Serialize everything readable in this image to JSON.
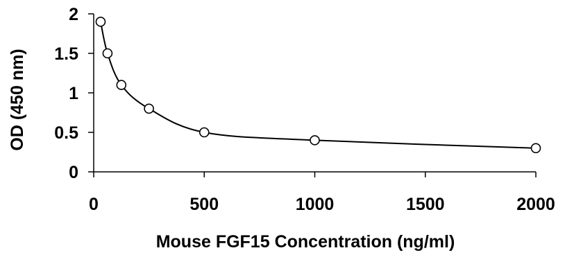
{
  "chart_data": {
    "type": "scatter",
    "xlabel": "Mouse FGF15  Concentration (ng/ml)",
    "ylabel": "OD (450 nm)",
    "xlim": [
      0,
      2000
    ],
    "ylim": [
      0,
      2
    ],
    "xticks": [
      0,
      500,
      1000,
      1500,
      2000
    ],
    "xtick_labels": [
      "0",
      "500",
      "1000",
      "1500",
      "2000"
    ],
    "yticks": [
      0,
      0.5,
      1,
      1.5,
      2
    ],
    "ytick_labels": [
      "0",
      "0.5",
      "1",
      "1.5",
      "2"
    ],
    "grid": false,
    "legend": "none",
    "series": [
      {
        "x": [
          31.25,
          62.5,
          125,
          250,
          500,
          1000,
          2000
        ],
        "y": [
          1.9,
          1.5,
          1.1,
          0.8,
          0.5,
          0.4,
          0.3
        ],
        "marker": "open-circle",
        "line": "smooth"
      }
    ],
    "colors": {
      "line": "#000000",
      "marker_fill": "#ffffff",
      "marker_stroke": "#000000"
    }
  }
}
